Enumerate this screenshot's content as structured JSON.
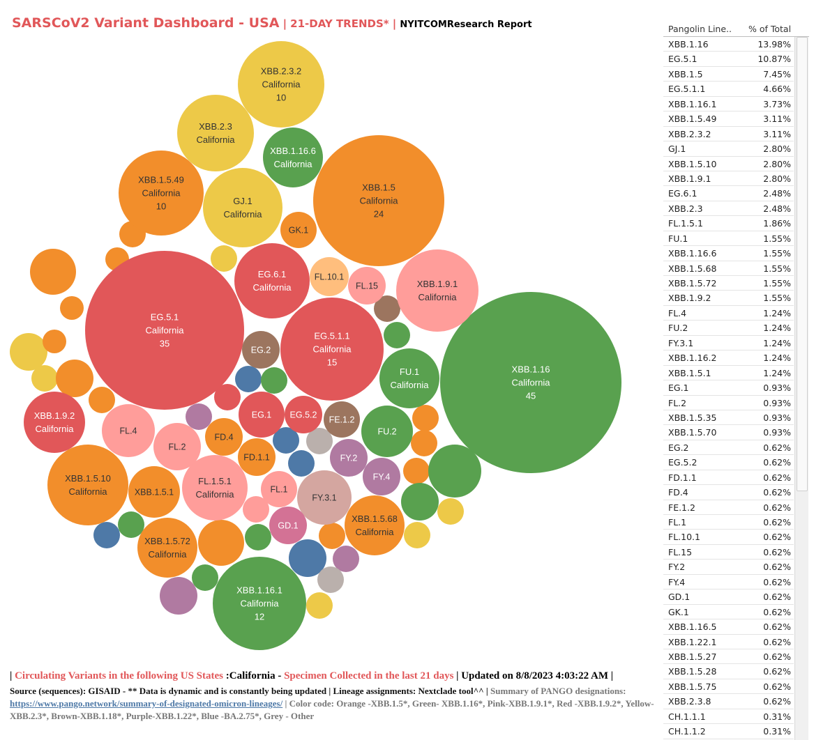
{
  "header": {
    "title": "SARSCoV2 Variant Dashboard - USA",
    "separator": "|",
    "subtitle": "21-DAY TRENDS*",
    "separator2": "|",
    "report": "NYITCOMResearch Report"
  },
  "colors": {
    "orange": "#f28e2b",
    "green": "#59a14f",
    "pink": "#ff9d9a",
    "red": "#e15759",
    "yellow": "#edc948",
    "brown": "#9c755f",
    "purple": "#b07aa1",
    "blue": "#4e79a7",
    "grey": "#bab0ac"
  },
  "chart_data": {
    "type": "packed-bubble",
    "title": "SARSCoV2 Variant Dashboard - USA",
    "state": "California",
    "size_measure": "sequence count",
    "bubbles": [
      {
        "lineage": "XBB.1.16",
        "state": "California",
        "count": 45,
        "group": "green"
      },
      {
        "lineage": "EG.5.1",
        "state": "California",
        "count": 35,
        "group": "red"
      },
      {
        "lineage": "XBB.1.5",
        "state": "California",
        "count": 24,
        "group": "orange"
      },
      {
        "lineage": "EG.5.1.1",
        "state": "California",
        "count": 15,
        "group": "red"
      },
      {
        "lineage": "XBB.1.16.1",
        "state": "California",
        "count": 12,
        "group": "green"
      },
      {
        "lineage": "XBB.2.3.2",
        "state": "California",
        "count": 10,
        "group": "yellow"
      },
      {
        "lineage": "XBB.1.5.49",
        "state": "California",
        "count": 10,
        "group": "orange"
      },
      {
        "lineage": "XBB.1.5.10",
        "state": "California",
        "count": null,
        "group": "orange"
      },
      {
        "lineage": "XBB.1.9.1",
        "state": "California",
        "count": null,
        "group": "pink"
      },
      {
        "lineage": "GJ.1",
        "state": "California",
        "count": null,
        "group": "yellow"
      },
      {
        "lineage": "EG.6.1",
        "state": "California",
        "count": null,
        "group": "red"
      },
      {
        "lineage": "XBB.2.3",
        "state": "California",
        "count": null,
        "group": "yellow"
      },
      {
        "lineage": "FL.1.5.1",
        "state": "California",
        "count": null,
        "group": "pink"
      },
      {
        "lineage": "FU.1",
        "state": "California",
        "count": null,
        "group": "green"
      },
      {
        "lineage": "XBB.1.16.6",
        "state": "California",
        "count": null,
        "group": "green"
      },
      {
        "lineage": "XBB.1.5.68",
        "state": "California",
        "count": null,
        "group": "orange"
      },
      {
        "lineage": "XBB.1.5.72",
        "state": "California",
        "count": null,
        "group": "orange"
      },
      {
        "lineage": "XBB.1.9.2",
        "state": "California",
        "count": null,
        "group": "red"
      },
      {
        "lineage": "FL.4",
        "state": "",
        "count": null,
        "group": "pink"
      },
      {
        "lineage": "FU.2",
        "state": "",
        "count": null,
        "group": "green"
      },
      {
        "lineage": "FY.3.1",
        "state": "",
        "count": null,
        "group": "grey"
      },
      {
        "lineage": "XBB.1.5.1",
        "state": "",
        "count": null,
        "group": "orange"
      },
      {
        "lineage": "FL.2",
        "state": "",
        "count": null,
        "group": "pink"
      },
      {
        "lineage": "EG.1",
        "state": "",
        "count": null,
        "group": "red"
      },
      {
        "lineage": "EG.2",
        "state": "",
        "count": null,
        "group": "brown"
      },
      {
        "lineage": "EG.5.2",
        "state": "",
        "count": null,
        "group": "red"
      },
      {
        "lineage": "FD.1.1",
        "state": "",
        "count": null,
        "group": "orange"
      },
      {
        "lineage": "FD.4",
        "state": "",
        "count": null,
        "group": "orange"
      },
      {
        "lineage": "FE.1.2",
        "state": "",
        "count": null,
        "group": "brown"
      },
      {
        "lineage": "FL.1",
        "state": "",
        "count": null,
        "group": "pink"
      },
      {
        "lineage": "FL.10.1",
        "state": "",
        "count": null,
        "group": "orange"
      },
      {
        "lineage": "FL.15",
        "state": "",
        "count": null,
        "group": "pink"
      },
      {
        "lineage": "FY.2",
        "state": "",
        "count": null,
        "group": "purple"
      },
      {
        "lineage": "FY.4",
        "state": "",
        "count": null,
        "group": "purple"
      },
      {
        "lineage": "GD.1",
        "state": "",
        "count": null,
        "group": "purple"
      },
      {
        "lineage": "GK.1",
        "state": "",
        "count": null,
        "group": "orange"
      }
    ]
  },
  "table": {
    "col1": "Pangolin Line..",
    "col2": "% of Total",
    "rows": [
      {
        "lineage": "XBB.1.16",
        "pct": "13.98%"
      },
      {
        "lineage": "EG.5.1",
        "pct": "10.87%"
      },
      {
        "lineage": "XBB.1.5",
        "pct": "7.45%"
      },
      {
        "lineage": "EG.5.1.1",
        "pct": "4.66%"
      },
      {
        "lineage": "XBB.1.16.1",
        "pct": "3.73%"
      },
      {
        "lineage": "XBB.1.5.49",
        "pct": "3.11%"
      },
      {
        "lineage": "XBB.2.3.2",
        "pct": "3.11%"
      },
      {
        "lineage": "GJ.1",
        "pct": "2.80%"
      },
      {
        "lineage": "XBB.1.5.10",
        "pct": "2.80%"
      },
      {
        "lineage": "XBB.1.9.1",
        "pct": "2.80%"
      },
      {
        "lineage": "EG.6.1",
        "pct": "2.48%"
      },
      {
        "lineage": "XBB.2.3",
        "pct": "2.48%"
      },
      {
        "lineage": "FL.1.5.1",
        "pct": "1.86%"
      },
      {
        "lineage": "FU.1",
        "pct": "1.55%"
      },
      {
        "lineage": "XBB.1.16.6",
        "pct": "1.55%"
      },
      {
        "lineage": "XBB.1.5.68",
        "pct": "1.55%"
      },
      {
        "lineage": "XBB.1.5.72",
        "pct": "1.55%"
      },
      {
        "lineage": "XBB.1.9.2",
        "pct": "1.55%"
      },
      {
        "lineage": "FL.4",
        "pct": "1.24%"
      },
      {
        "lineage": "FU.2",
        "pct": "1.24%"
      },
      {
        "lineage": "FY.3.1",
        "pct": "1.24%"
      },
      {
        "lineage": "XBB.1.16.2",
        "pct": "1.24%"
      },
      {
        "lineage": "XBB.1.5.1",
        "pct": "1.24%"
      },
      {
        "lineage": "EG.1",
        "pct": "0.93%"
      },
      {
        "lineage": "FL.2",
        "pct": "0.93%"
      },
      {
        "lineage": "XBB.1.5.35",
        "pct": "0.93%"
      },
      {
        "lineage": "XBB.1.5.70",
        "pct": "0.93%"
      },
      {
        "lineage": "EG.2",
        "pct": "0.62%"
      },
      {
        "lineage": "EG.5.2",
        "pct": "0.62%"
      },
      {
        "lineage": "FD.1.1",
        "pct": "0.62%"
      },
      {
        "lineage": "FD.4",
        "pct": "0.62%"
      },
      {
        "lineage": "FE.1.2",
        "pct": "0.62%"
      },
      {
        "lineage": "FL.1",
        "pct": "0.62%"
      },
      {
        "lineage": "FL.10.1",
        "pct": "0.62%"
      },
      {
        "lineage": "FL.15",
        "pct": "0.62%"
      },
      {
        "lineage": "FY.2",
        "pct": "0.62%"
      },
      {
        "lineage": "FY.4",
        "pct": "0.62%"
      },
      {
        "lineage": "GD.1",
        "pct": "0.62%"
      },
      {
        "lineage": "GK.1",
        "pct": "0.62%"
      },
      {
        "lineage": "XBB.1.16.5",
        "pct": "0.62%"
      },
      {
        "lineage": "XBB.1.22.1",
        "pct": "0.62%"
      },
      {
        "lineage": "XBB.1.5.27",
        "pct": "0.62%"
      },
      {
        "lineage": "XBB.1.5.28",
        "pct": "0.62%"
      },
      {
        "lineage": "XBB.1.5.75",
        "pct": "0.62%"
      },
      {
        "lineage": "XBB.2.3.8",
        "pct": "0.62%"
      },
      {
        "lineage": "CH.1.1.1",
        "pct": "0.31%"
      },
      {
        "lineage": "CH.1.1.2",
        "pct": "0.31%"
      }
    ]
  },
  "footer": {
    "p1": "| ",
    "p2": "Circulating Variants in the following US States ",
    "p3": ":California - ",
    "p4": "Specimen Collected in the last 21 days",
    "p5": " | Updated on 8/8/2023 4:03:22 AM |",
    "l2a": "Source (sequences): GISAID - ** Data is dynamic and is constantly being updated | Lineage assignments: Nextclade tool^^ | ",
    "l2b": "Summary of PANGO designations: ",
    "l2link": "https://www.pango.network/summary-of-designated-omicron-lineages/",
    "l2c": " | Color code: Orange -XBB.1.5*, Green- XBB.1.16*, Pink-XBB.1.9.1*, Red -XBB.1.9.2*, Yellow-XBB.2.3*, Brown-XBB.1.18*, Purple-XBB.1.22*, Blue -BA.2.75*, Grey - Other"
  }
}
